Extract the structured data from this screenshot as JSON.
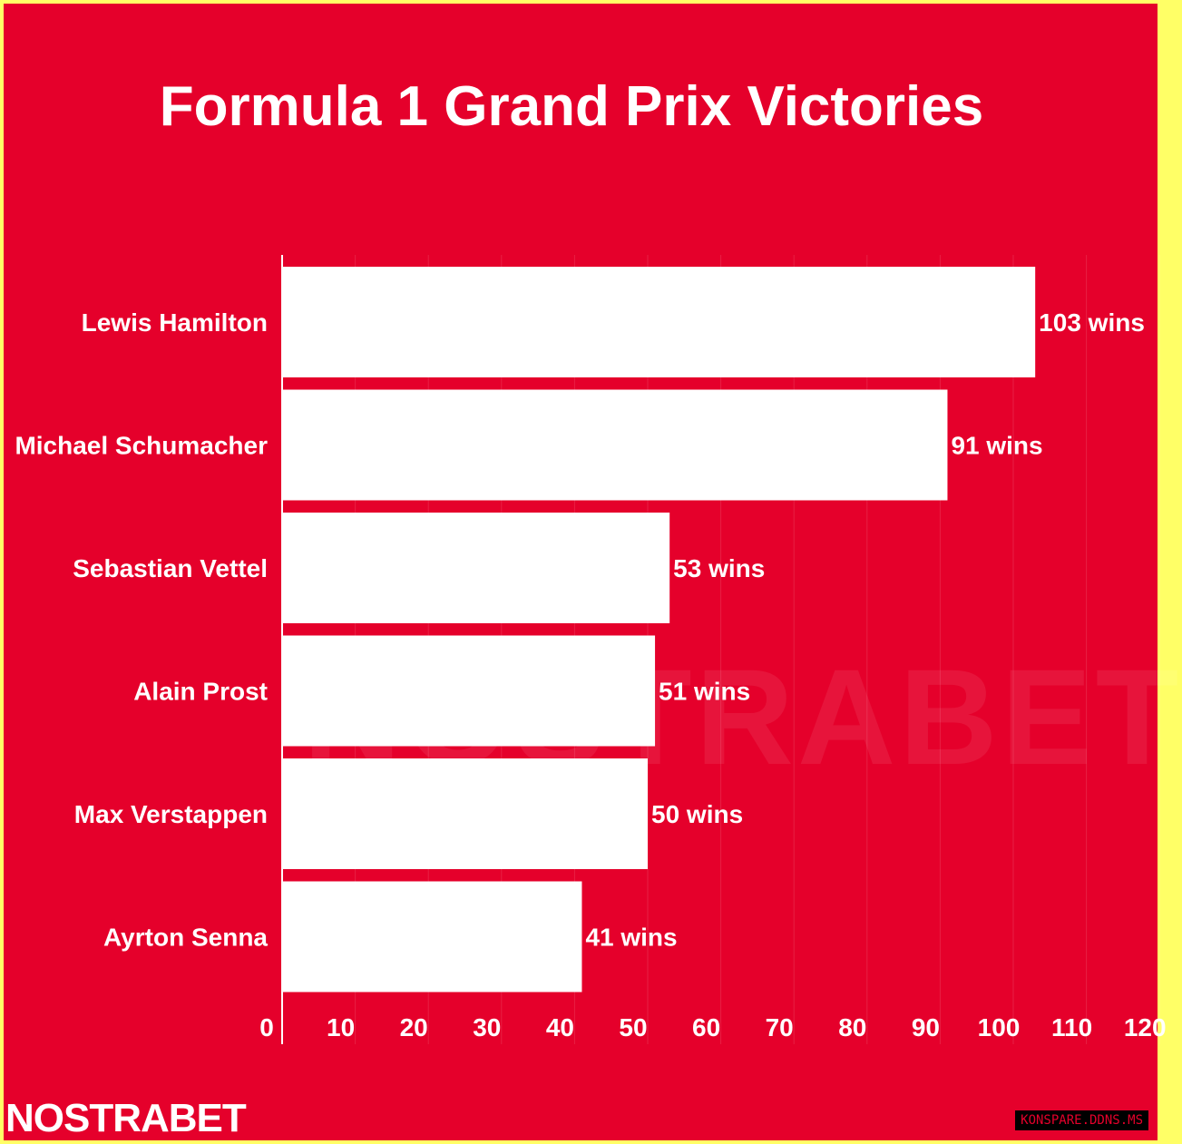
{
  "chart_data": {
    "type": "bar",
    "orientation": "horizontal",
    "title": "Formula 1 Grand Prix Victories",
    "categories": [
      "Lewis Hamilton",
      "Michael Schumacher",
      "Sebastian Vettel",
      "Alain Prost",
      "Max Verstappen",
      "Ayrton Senna"
    ],
    "values": [
      103,
      91,
      53,
      51,
      50,
      41
    ],
    "data_labels": [
      "103 wins",
      "91 wins",
      "53 wins",
      "51 wins",
      "50 wins",
      "41 wins"
    ],
    "xticks": [
      0,
      10,
      20,
      30,
      40,
      50,
      60,
      70,
      80,
      90,
      100,
      110,
      120
    ],
    "xlim": [
      0,
      120
    ],
    "grid": "vertical",
    "colors": {
      "background": "#e5002b",
      "bar": "#ffffff",
      "text": "#ffffff",
      "border": "#ffff66"
    }
  },
  "branding": {
    "logo": "NOSTRABET",
    "watermark": "NOSTRABET",
    "badge": "KONSPARE.DDNS.MS"
  }
}
